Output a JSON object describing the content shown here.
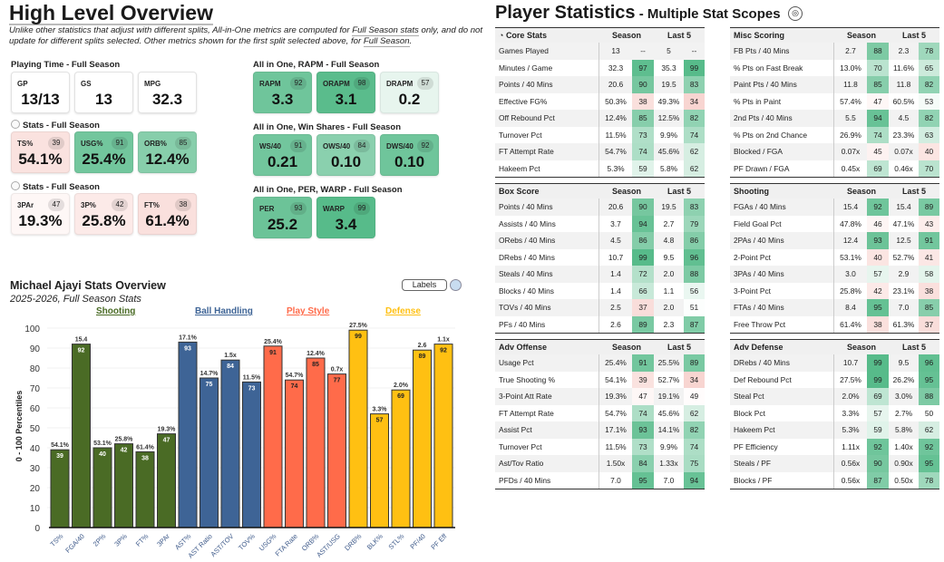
{
  "overview": {
    "title": "High Level Overview",
    "subtitle_a": "Unlike other statistics that adjust with different splits, All-in-One metrics are computed for ",
    "subtitle_link1": "Full Season stats",
    "subtitle_b": " only, and do not update for different splits selected. Other metrics shown for the first split selected above, for ",
    "subtitle_link2": "Full Season",
    "subtitle_c": ".",
    "groups": [
      {
        "label": "Playing Time - Full Season",
        "radio": false,
        "cards": [
          {
            "label": "GP",
            "value": "13/13"
          },
          {
            "label": "GS",
            "value": "13"
          },
          {
            "label": "MPG",
            "value": "32.3"
          }
        ]
      },
      {
        "label": "Stats - Full Season",
        "radio": true,
        "cards": [
          {
            "label": "TS%",
            "value": "54.1%",
            "pct": 39
          },
          {
            "label": "USG%",
            "value": "25.4%",
            "pct": 91
          },
          {
            "label": "ORB%",
            "value": "12.4%",
            "pct": 85
          }
        ]
      },
      {
        "label": "Stats - Full Season",
        "radio": true,
        "cards": [
          {
            "label": "3PAr",
            "value": "19.3%",
            "pct": 47
          },
          {
            "label": "3P%",
            "value": "25.8%",
            "pct": 42
          },
          {
            "label": "FT%",
            "value": "61.4%",
            "pct": 38
          }
        ]
      },
      {
        "label": "All in One, RAPM - Full Season",
        "radio": false,
        "cards": [
          {
            "label": "RAPM",
            "value": "3.3",
            "pct": 92
          },
          {
            "label": "ORAPM",
            "value": "3.1",
            "pct": 98
          },
          {
            "label": "DRAPM",
            "value": "0.2",
            "pct": 57
          }
        ]
      },
      {
        "label": "All in One, Win Shares - Full Season",
        "radio": false,
        "cards": [
          {
            "label": "WS/40",
            "value": "0.21",
            "pct": 91
          },
          {
            "label": "OWS/40",
            "value": "0.10",
            "pct": 84
          },
          {
            "label": "DWS/40",
            "value": "0.10",
            "pct": 92
          }
        ]
      },
      {
        "label": "All in One, PER, WARP - Full Season",
        "radio": false,
        "cards": [
          {
            "label": "PER",
            "value": "25.2",
            "pct": 93
          },
          {
            "label": "WARP",
            "value": "3.4",
            "pct": 99
          }
        ]
      }
    ]
  },
  "player_stats": {
    "title": "Player Statistics",
    "subtitle": " - Multiple Stat Scopes",
    "icon": "basketball-icon",
    "season_label": "Season",
    "last5_label": "Last 5",
    "tables": [
      {
        "name": "Core Stats",
        "icon": "clock-icon",
        "rows": [
          [
            "Games Played",
            "13",
            "--",
            "5",
            "--"
          ],
          [
            "Minutes / Game",
            "32.3",
            "97",
            "35.3",
            "99"
          ],
          [
            "Points / 40 Mins",
            "20.6",
            "90",
            "19.5",
            "83"
          ],
          [
            "Effective FG%",
            "50.3%",
            "38",
            "49.3%",
            "34"
          ],
          [
            "Off Rebound Pct",
            "12.4%",
            "85",
            "12.5%",
            "82"
          ],
          [
            "Turnover Pct",
            "11.5%",
            "73",
            "9.9%",
            "74"
          ],
          [
            "FT Attempt Rate",
            "54.7%",
            "74",
            "45.6%",
            "62"
          ],
          [
            "Hakeem Pct",
            "5.3%",
            "59",
            "5.8%",
            "62"
          ]
        ]
      },
      {
        "name": "Misc Scoring",
        "rows": [
          [
            "FB Pts / 40 Mins",
            "2.7",
            "88",
            "2.3",
            "78"
          ],
          [
            "% Pts on Fast Break",
            "13.0%",
            "70",
            "11.6%",
            "65"
          ],
          [
            "Paint Pts / 40 Mins",
            "11.8",
            "85",
            "11.8",
            "82"
          ],
          [
            "% Pts in Paint",
            "57.4%",
            "47",
            "60.5%",
            "53"
          ],
          [
            "2nd Pts / 40 Mins",
            "5.5",
            "94",
            "4.5",
            "82"
          ],
          [
            "% Pts on 2nd Chance",
            "26.9%",
            "74",
            "23.3%",
            "63"
          ],
          [
            "Blocked / FGA",
            "0.07x",
            "45",
            "0.07x",
            "40"
          ],
          [
            "PF Drawn / FGA",
            "0.45x",
            "69",
            "0.46x",
            "70"
          ]
        ]
      },
      {
        "name": "Box Score",
        "rows": [
          [
            "Points / 40 Mins",
            "20.6",
            "90",
            "19.5",
            "83"
          ],
          [
            "Assists / 40 Mins",
            "3.7",
            "94",
            "2.7",
            "79"
          ],
          [
            "ORebs / 40 Mins",
            "4.5",
            "86",
            "4.8",
            "86"
          ],
          [
            "DRebs / 40 Mins",
            "10.7",
            "99",
            "9.5",
            "96"
          ],
          [
            "Steals / 40 Mins",
            "1.4",
            "72",
            "2.0",
            "88"
          ],
          [
            "Blocks / 40 Mins",
            "1.4",
            "66",
            "1.1",
            "56"
          ],
          [
            "TOVs / 40 Mins",
            "2.5",
            "37",
            "2.0",
            "51"
          ],
          [
            "PFs / 40 Mins",
            "2.6",
            "89",
            "2.3",
            "87"
          ]
        ]
      },
      {
        "name": "Shooting",
        "rows": [
          [
            "FGAs / 40 Mins",
            "15.4",
            "92",
            "15.4",
            "89"
          ],
          [
            "Field Goal Pct",
            "47.8%",
            "46",
            "47.1%",
            "43"
          ],
          [
            "2PAs / 40 Mins",
            "12.4",
            "93",
            "12.5",
            "91"
          ],
          [
            "2-Point Pct",
            "53.1%",
            "40",
            "52.7%",
            "41"
          ],
          [
            "3PAs / 40 Mins",
            "3.0",
            "57",
            "2.9",
            "58"
          ],
          [
            "3-Point Pct",
            "25.8%",
            "42",
            "23.1%",
            "38"
          ],
          [
            "FTAs / 40 Mins",
            "8.4",
            "95",
            "7.0",
            "85"
          ],
          [
            "Free Throw Pct",
            "61.4%",
            "38",
            "61.3%",
            "37"
          ]
        ]
      },
      {
        "name": "Adv Offense",
        "rows": [
          [
            "Usage Pct",
            "25.4%",
            "91",
            "25.5%",
            "89"
          ],
          [
            "True Shooting %",
            "54.1%",
            "39",
            "52.7%",
            "34"
          ],
          [
            "3-Point Att Rate",
            "19.3%",
            "47",
            "19.1%",
            "49"
          ],
          [
            "FT Attempt Rate",
            "54.7%",
            "74",
            "45.6%",
            "62"
          ],
          [
            "Assist Pct",
            "17.1%",
            "93",
            "14.1%",
            "82"
          ],
          [
            "Turnover Pct",
            "11.5%",
            "73",
            "9.9%",
            "74"
          ],
          [
            "Ast/Tov Ratio",
            "1.50x",
            "84",
            "1.33x",
            "75"
          ],
          [
            "PFDs / 40 Mins",
            "7.0",
            "95",
            "7.0",
            "94"
          ]
        ]
      },
      {
        "name": "Adv Defense",
        "rows": [
          [
            "DRebs / 40 Mins",
            "10.7",
            "99",
            "9.5",
            "96"
          ],
          [
            "Def Rebound Pct",
            "27.5%",
            "99",
            "26.2%",
            "95"
          ],
          [
            "Steal Pct",
            "2.0%",
            "69",
            "3.0%",
            "88"
          ],
          [
            "Block Pct",
            "3.3%",
            "57",
            "2.7%",
            "50"
          ],
          [
            "Hakeem Pct",
            "5.3%",
            "59",
            "5.8%",
            "62"
          ],
          [
            "PF Efficiency",
            "1.11x",
            "92",
            "1.40x",
            "92"
          ],
          [
            "Steals / PF",
            "0.56x",
            "90",
            "0.90x",
            "95"
          ],
          [
            "Blocks / PF",
            "0.56x",
            "87",
            "0.50x",
            "78"
          ]
        ]
      }
    ]
  },
  "chart_data": {
    "type": "bar",
    "title": "Michael Ajayi Stats Overview",
    "subtitle": "2025-2026, Full Season Stats",
    "ylabel": "0 - 100 Percentiles",
    "ylim": [
      0,
      100
    ],
    "yticks": [
      "0",
      "10",
      "20",
      "30",
      "40",
      "50",
      "60",
      "70",
      "80",
      "90",
      "100"
    ],
    "labels_button": "Labels",
    "groups": [
      {
        "name": "Shooting",
        "color": "#4a6b25"
      },
      {
        "name": "Ball Handling",
        "color": "#3e6496"
      },
      {
        "name": "Play Style",
        "color": "#ff6b4a"
      },
      {
        "name": "Defense",
        "color": "#ffc012"
      }
    ],
    "categories": [
      "TS%",
      "FGA/40",
      "2P%",
      "3P%",
      "FT%",
      "3PAr",
      "AST%",
      "AST Ratio",
      "AST/TOV",
      "TOV%",
      "USG%",
      "FTA Rate",
      "ORB%",
      "AST/USG",
      "DRB%",
      "BLK%",
      "STL%",
      "PF/40",
      "PF Eff"
    ],
    "group_index": [
      0,
      0,
      0,
      0,
      0,
      0,
      1,
      1,
      1,
      1,
      2,
      2,
      2,
      2,
      3,
      3,
      3,
      3,
      3
    ],
    "values": [
      39,
      92,
      40,
      42,
      38,
      47,
      93,
      75,
      84,
      73,
      91,
      74,
      85,
      77,
      99,
      57,
      69,
      89,
      92
    ],
    "raw_labels": [
      "54.1%",
      "15.4",
      "53.1%",
      "25.8%",
      "61.4%",
      "19.3%",
      "17.1%",
      "14.7%",
      "1.5x",
      "11.5%",
      "25.4%",
      "54.7%",
      "12.4%",
      "0.7x",
      "27.5%",
      "3.3%",
      "2.0%",
      "2.6",
      "1.1x"
    ]
  }
}
